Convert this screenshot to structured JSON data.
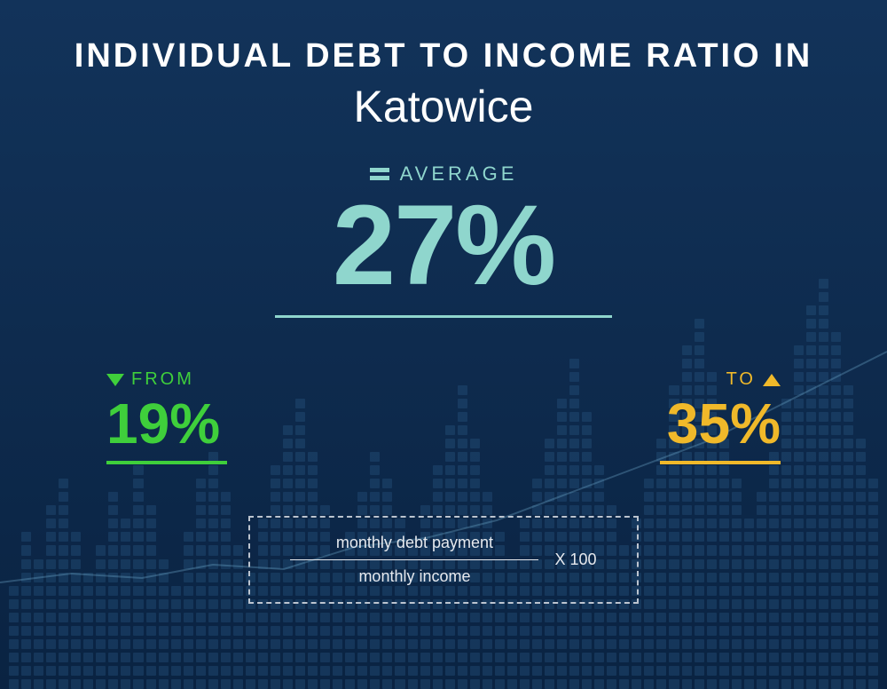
{
  "colors": {
    "bg_gradient_top": "#12335a",
    "bg_gradient_bottom": "#0a2342",
    "title": "#ffffff",
    "avg_accent": "#8fd6cd",
    "from_accent": "#3fcf3b",
    "to_accent": "#f0b92a",
    "formula_text": "#e6e9ee",
    "formula_border": "#bcc4cf",
    "bg_chart_dot": "#2a5a86",
    "bg_line": "#6da7c9"
  },
  "typography": {
    "title_line1_size": 38,
    "title_line2_size": 50,
    "avg_value_size": 128,
    "range_value_size": 64,
    "label_size": 20,
    "formula_size": 18
  },
  "title": {
    "line1": "INDIVIDUAL  DEBT  TO  INCOME RATIO  IN",
    "line2": "Katowice"
  },
  "average": {
    "label": "AVERAGE",
    "value": "27%"
  },
  "range": {
    "from": {
      "label": "FROM",
      "value": "19%"
    },
    "to": {
      "label": "TO",
      "value": "35%"
    }
  },
  "formula": {
    "numerator": "monthly debt payment",
    "denominator": "monthly income",
    "multiplier": "X 100"
  },
  "bg_chart": {
    "columns": 70,
    "heights": [
      8,
      12,
      10,
      14,
      16,
      12,
      9,
      11,
      15,
      13,
      17,
      14,
      10,
      8,
      12,
      16,
      18,
      15,
      11,
      9,
      13,
      17,
      20,
      22,
      18,
      14,
      10,
      12,
      15,
      18,
      16,
      13,
      11,
      14,
      17,
      20,
      23,
      19,
      15,
      12,
      10,
      13,
      16,
      19,
      22,
      25,
      21,
      17,
      14,
      11,
      13,
      16,
      19,
      23,
      26,
      28,
      24,
      20,
      16,
      13,
      15,
      18,
      22,
      26,
      29,
      31,
      27,
      23,
      19,
      16
    ]
  },
  "bg_line_points": "0,300 80,290 160,295 240,280 320,285 400,260 480,250 560,230 640,200 720,170 800,140 880,100 960,60 1000,40"
}
